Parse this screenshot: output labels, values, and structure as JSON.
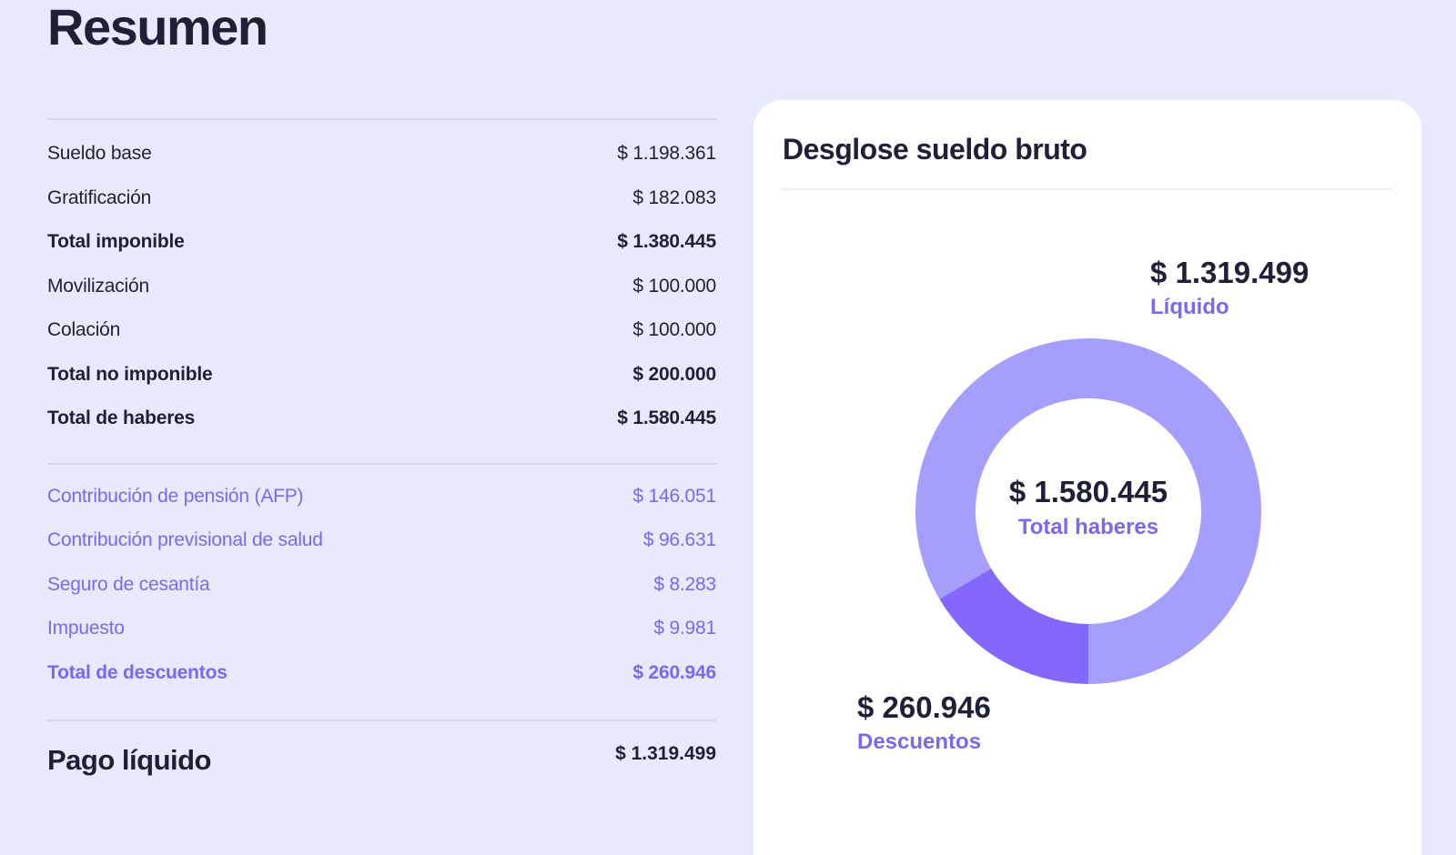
{
  "page": {
    "title": "Resumen"
  },
  "summary": {
    "haberes": [
      {
        "label": "Sueldo base",
        "value": "$ 1.198.361",
        "bold": false
      },
      {
        "label": "Gratificación",
        "value": "$ 182.083",
        "bold": false
      },
      {
        "label": "Total imponible",
        "value": "$ 1.380.445",
        "bold": true
      },
      {
        "label": "Movilización",
        "value": "$ 100.000",
        "bold": false
      },
      {
        "label": "Colación",
        "value": "$ 100.000",
        "bold": false
      },
      {
        "label": "Total no imponible",
        "value": "$ 200.000",
        "bold": true
      },
      {
        "label": "Total de haberes",
        "value": "$ 1.580.445",
        "bold": true
      }
    ],
    "descuentos": [
      {
        "label": "Contribución de pensión (AFP)",
        "value": "$ 146.051",
        "bold": false
      },
      {
        "label": "Contribución previsional de salud",
        "value": "$ 96.631",
        "bold": false
      },
      {
        "label": "Seguro de cesantía",
        "value": "$ 8.283",
        "bold": false
      },
      {
        "label": "Impuesto",
        "value": "$ 9.981",
        "bold": false
      },
      {
        "label": "Total de descuentos",
        "value": "$ 260.946",
        "bold": true
      }
    ],
    "pago_liquido": {
      "label": "Pago líquido",
      "value": "$ 1.319.499"
    }
  },
  "card": {
    "title": "Desglose sueldo bruto",
    "center": {
      "value": "$ 1.580.445",
      "caption": "Total haberes"
    },
    "liquido": {
      "value": "$ 1.319.499",
      "caption": "Líquido"
    },
    "descuentos": {
      "value": "$ 260.946",
      "caption": "Descuentos"
    }
  },
  "colors": {
    "background": "#e9e9fe",
    "text": "#1f1f38",
    "accent": "#7b68ee",
    "liquido_segment": "#a59efd",
    "descuentos_segment": "#8467fc"
  },
  "chart_data": {
    "type": "pie",
    "title": "Desglose sueldo bruto",
    "subtype": "donut",
    "center_label": "Total haberes",
    "center_value": 1580445,
    "categories": [
      "Líquido",
      "Descuentos"
    ],
    "values": [
      1319499,
      260946
    ],
    "colors": [
      "#a59efd",
      "#8467fc"
    ],
    "start_angle_deg": 180,
    "direction": "clockwise",
    "legend": "annotations"
  }
}
